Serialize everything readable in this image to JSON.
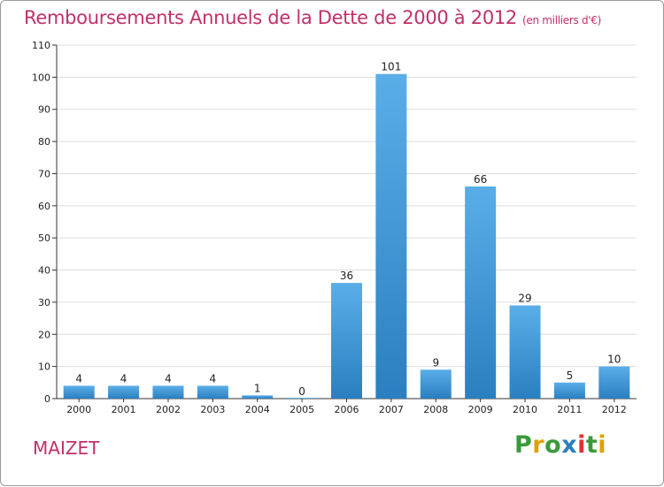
{
  "header": {
    "title": "Remboursements Annuels de la Dette de 2000 à 2012",
    "unit": "(en milliers d'€)"
  },
  "footer": {
    "commune": "MAIZET",
    "logo": [
      "P",
      "r",
      "o",
      "x",
      "i",
      "t",
      "i"
    ]
  },
  "colors": {
    "title": "#c0306a",
    "bar_top": "#5aaee8",
    "bar_bottom": "#2a7fc0",
    "grid": "#dddddd",
    "logo": [
      "#3a9a3a",
      "#e0a000",
      "#3a9a3a",
      "#2a7fc0",
      "#e03030",
      "#3a9a3a",
      "#e0a000"
    ]
  },
  "chart_data": {
    "type": "bar",
    "categories": [
      "2000",
      "2001",
      "2002",
      "2003",
      "2004",
      "2005",
      "2006",
      "2007",
      "2008",
      "2009",
      "2010",
      "2011",
      "2012"
    ],
    "values": [
      4,
      4,
      4,
      4,
      1,
      0,
      36,
      101,
      9,
      66,
      29,
      5,
      10
    ],
    "title": "Remboursements Annuels de la Dette de 2000 à 2012",
    "ylim": [
      0,
      110
    ],
    "yticks": [
      0,
      10,
      20,
      30,
      40,
      50,
      60,
      70,
      80,
      90,
      100,
      110
    ],
    "grid": true
  }
}
